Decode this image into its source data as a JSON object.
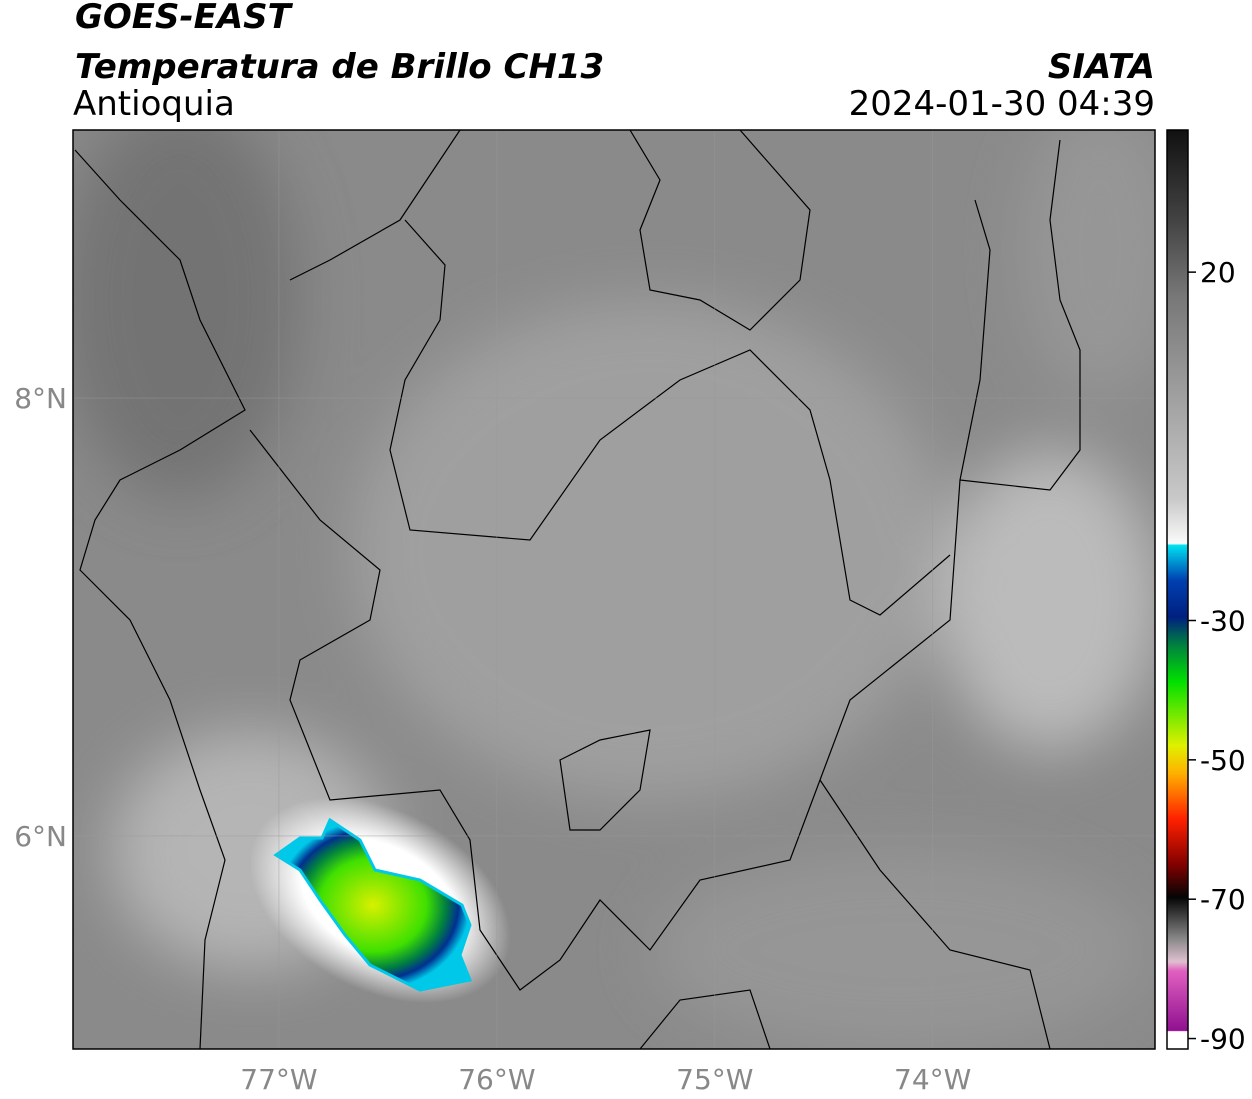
{
  "header": {
    "title": "GOES-EAST",
    "subtitle": "Temperatura de Brillo CH13",
    "region": "Antioquia",
    "source": "SIATA",
    "timestamp": "2024-01-30 04:39"
  },
  "map": {
    "xlim": [
      -77.945,
      -72.98
    ],
    "ylim": [
      5.027,
      9.224
    ],
    "xticks": [
      {
        "value": -77,
        "label": "77°W"
      },
      {
        "value": -76,
        "label": "76°W"
      },
      {
        "value": -75,
        "label": "75°W"
      },
      {
        "value": -74,
        "label": "74°W"
      }
    ],
    "yticks": [
      {
        "value": 6,
        "label": "6°N"
      },
      {
        "value": 8,
        "label": "8°N"
      }
    ]
  },
  "colorbar": {
    "lim": [
      -91.5,
      40.4
    ],
    "ticks": [
      20,
      -30,
      -50,
      -70,
      -90
    ]
  }
}
